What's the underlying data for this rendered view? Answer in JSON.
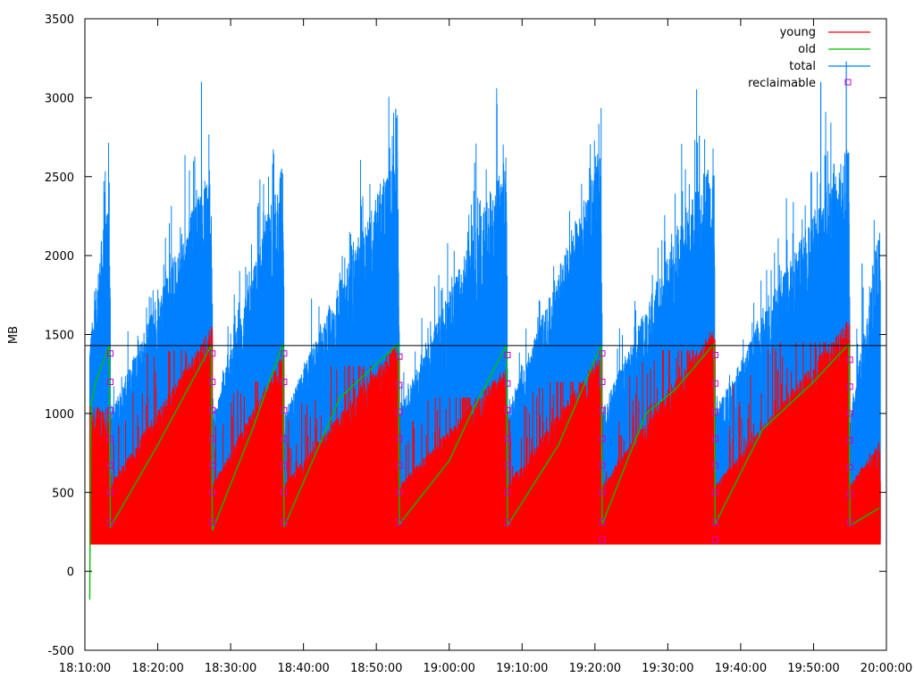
{
  "chart_data": {
    "type": "line",
    "title": "",
    "xlabel": "",
    "ylabel": "MB",
    "xlim": [
      "18:10:00",
      "20:00:00"
    ],
    "ylim": [
      -500,
      3500
    ],
    "x_ticks": [
      "18:10:00",
      "18:20:00",
      "18:30:00",
      "18:40:00",
      "18:50:00",
      "19:00:00",
      "19:10:00",
      "19:20:00",
      "19:30:00",
      "19:40:00",
      "19:50:00",
      "20:00:00"
    ],
    "y_ticks": [
      -500,
      0,
      500,
      1000,
      1500,
      2000,
      2500,
      3000,
      3500
    ],
    "grid": false,
    "legend_position": "top-right",
    "reference_line_y": 1430,
    "gc_cycle_starts": [
      "18:10:40",
      "18:13:30",
      "18:27:30",
      "18:37:20",
      "18:53:10",
      "19:08:00",
      "19:21:00",
      "19:36:30",
      "19:55:00"
    ],
    "series": [
      {
        "name": "young",
        "color": "#ff0000",
        "style": "impulses",
        "baseline": 180,
        "cycle_peak_envelope": [
          {
            "x": "18:13:30",
            "y": 600
          },
          {
            "x": "18:27:30",
            "y": 1400
          },
          {
            "x": "18:37:20",
            "y": 1200
          },
          {
            "x": "18:53:10",
            "y": 1300
          },
          {
            "x": "19:08:00",
            "y": 1100
          },
          {
            "x": "19:21:00",
            "y": 1200
          },
          {
            "x": "19:36:30",
            "y": 1400
          },
          {
            "x": "19:55:00",
            "y": 1450
          },
          {
            "x": "19:59:00",
            "y": 560
          }
        ]
      },
      {
        "name": "old",
        "color": "#00c000",
        "style": "line",
        "points": [
          {
            "x": "18:10:40",
            "y": -180
          },
          {
            "x": "18:10:50",
            "y": 1050
          },
          {
            "x": "18:11:30",
            "y": 1200
          },
          {
            "x": "18:13:20",
            "y": 1430
          },
          {
            "x": "18:13:30",
            "y": 280
          },
          {
            "x": "18:20:00",
            "y": 800
          },
          {
            "x": "18:27:20",
            "y": 1430
          },
          {
            "x": "18:27:30",
            "y": 260
          },
          {
            "x": "18:33:00",
            "y": 900
          },
          {
            "x": "18:37:10",
            "y": 1440
          },
          {
            "x": "18:37:20",
            "y": 280
          },
          {
            "x": "18:45:00",
            "y": 1100
          },
          {
            "x": "18:53:00",
            "y": 1440
          },
          {
            "x": "18:53:10",
            "y": 300
          },
          {
            "x": "19:00:00",
            "y": 700
          },
          {
            "x": "19:03:00",
            "y": 1000
          },
          {
            "x": "19:07:50",
            "y": 1430
          },
          {
            "x": "19:08:00",
            "y": 290
          },
          {
            "x": "19:15:00",
            "y": 800
          },
          {
            "x": "19:20:50",
            "y": 1430
          },
          {
            "x": "19:21:00",
            "y": 300
          },
          {
            "x": "19:27:00",
            "y": 1000
          },
          {
            "x": "19:31:00",
            "y": 1150
          },
          {
            "x": "19:36:20",
            "y": 1440
          },
          {
            "x": "19:36:30",
            "y": 300
          },
          {
            "x": "19:43:00",
            "y": 900
          },
          {
            "x": "19:50:00",
            "y": 1200
          },
          {
            "x": "19:54:50",
            "y": 1440
          },
          {
            "x": "19:55:00",
            "y": 290
          },
          {
            "x": "19:59:00",
            "y": 400
          }
        ]
      },
      {
        "name": "total",
        "color": "#0080ff",
        "style": "impulses",
        "base_envelope": [
          {
            "x": "18:10:40",
            "y": 1050
          },
          {
            "x": "18:13:20",
            "y": 1480
          },
          {
            "x": "18:13:30",
            "y": 600
          },
          {
            "x": "18:27:20",
            "y": 1500
          },
          {
            "x": "18:27:30",
            "y": 580
          },
          {
            "x": "18:37:10",
            "y": 1520
          },
          {
            "x": "18:37:20",
            "y": 600
          },
          {
            "x": "18:53:00",
            "y": 1620
          },
          {
            "x": "18:53:10",
            "y": 620
          },
          {
            "x": "19:07:50",
            "y": 1550
          },
          {
            "x": "19:08:00",
            "y": 620
          },
          {
            "x": "19:20:50",
            "y": 1560
          },
          {
            "x": "19:21:00",
            "y": 620
          },
          {
            "x": "19:36:20",
            "y": 1600
          },
          {
            "x": "19:36:30",
            "y": 620
          },
          {
            "x": "19:54:50",
            "y": 1630
          },
          {
            "x": "19:55:00",
            "y": 560
          },
          {
            "x": "19:59:00",
            "y": 1100
          }
        ],
        "cycle_peaks": [
          {
            "x": "18:12:40",
            "y": 2400
          },
          {
            "x": "18:26:00",
            "y": 3100
          },
          {
            "x": "18:37:00",
            "y": 2550
          },
          {
            "x": "18:52:40",
            "y": 2930
          },
          {
            "x": "19:06:00",
            "y": 2350
          },
          {
            "x": "19:20:30",
            "y": 2600
          },
          {
            "x": "19:34:20",
            "y": 2760
          },
          {
            "x": "19:51:00",
            "y": 3100
          },
          {
            "x": "19:54:30",
            "y": 3230
          },
          {
            "x": "19:56:40",
            "y": 1950
          }
        ]
      },
      {
        "name": "reclaimable",
        "color": "#cc00cc",
        "style": "points",
        "points": [
          {
            "x": "18:13:30",
            "y": 1380
          },
          {
            "x": "18:13:30",
            "y": 1200
          },
          {
            "x": "18:13:30",
            "y": 1020
          },
          {
            "x": "18:13:30",
            "y": 840
          },
          {
            "x": "18:13:30",
            "y": 670
          },
          {
            "x": "18:13:30",
            "y": 500
          },
          {
            "x": "18:13:30",
            "y": 310
          },
          {
            "x": "18:27:30",
            "y": 1380
          },
          {
            "x": "18:27:30",
            "y": 1200
          },
          {
            "x": "18:27:30",
            "y": 1020
          },
          {
            "x": "18:27:30",
            "y": 840
          },
          {
            "x": "18:27:30",
            "y": 670
          },
          {
            "x": "18:27:30",
            "y": 500
          },
          {
            "x": "18:27:30",
            "y": 310
          },
          {
            "x": "18:37:20",
            "y": 1380
          },
          {
            "x": "18:37:20",
            "y": 1200
          },
          {
            "x": "18:37:20",
            "y": 1020
          },
          {
            "x": "18:37:20",
            "y": 840
          },
          {
            "x": "18:37:20",
            "y": 670
          },
          {
            "x": "18:37:20",
            "y": 500
          },
          {
            "x": "18:37:20",
            "y": 310
          },
          {
            "x": "18:53:10",
            "y": 1360
          },
          {
            "x": "18:53:10",
            "y": 1180
          },
          {
            "x": "18:53:10",
            "y": 1010
          },
          {
            "x": "18:53:10",
            "y": 840
          },
          {
            "x": "18:53:10",
            "y": 670
          },
          {
            "x": "18:53:10",
            "y": 500
          },
          {
            "x": "18:53:10",
            "y": 310
          },
          {
            "x": "19:08:00",
            "y": 1370
          },
          {
            "x": "19:08:00",
            "y": 1190
          },
          {
            "x": "19:08:00",
            "y": 1020
          },
          {
            "x": "19:08:00",
            "y": 840
          },
          {
            "x": "19:08:00",
            "y": 670
          },
          {
            "x": "19:08:00",
            "y": 500
          },
          {
            "x": "19:08:00",
            "y": 310
          },
          {
            "x": "19:21:00",
            "y": 1380
          },
          {
            "x": "19:21:00",
            "y": 1200
          },
          {
            "x": "19:21:00",
            "y": 1020
          },
          {
            "x": "19:21:00",
            "y": 840
          },
          {
            "x": "19:21:00",
            "y": 670
          },
          {
            "x": "19:21:00",
            "y": 500
          },
          {
            "x": "19:21:00",
            "y": 310
          },
          {
            "x": "19:21:00",
            "y": 200
          },
          {
            "x": "19:36:30",
            "y": 1370
          },
          {
            "x": "19:36:30",
            "y": 1190
          },
          {
            "x": "19:36:30",
            "y": 1010
          },
          {
            "x": "19:36:30",
            "y": 840
          },
          {
            "x": "19:36:30",
            "y": 670
          },
          {
            "x": "19:36:30",
            "y": 500
          },
          {
            "x": "19:36:30",
            "y": 310
          },
          {
            "x": "19:36:30",
            "y": 200
          },
          {
            "x": "19:55:00",
            "y": 1340
          },
          {
            "x": "19:55:00",
            "y": 1170
          },
          {
            "x": "19:55:00",
            "y": 1000
          },
          {
            "x": "19:55:00",
            "y": 830
          },
          {
            "x": "19:55:00",
            "y": 660
          },
          {
            "x": "19:55:00",
            "y": 490
          },
          {
            "x": "19:55:00",
            "y": 310
          }
        ]
      }
    ]
  }
}
